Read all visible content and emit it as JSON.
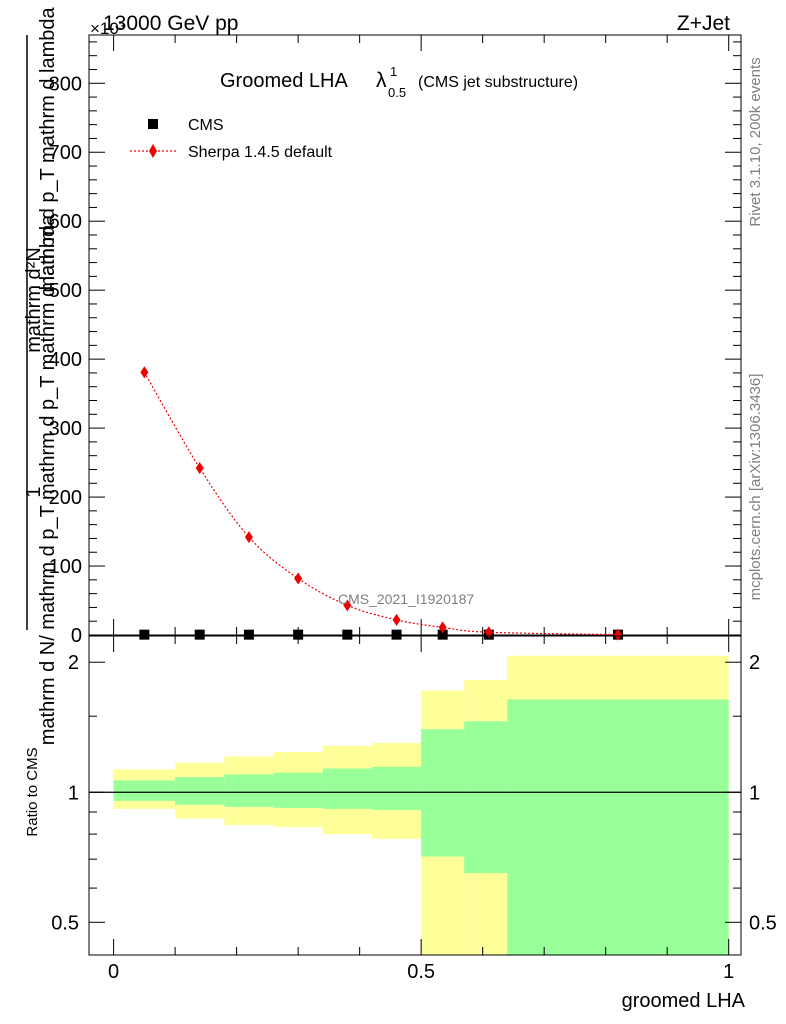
{
  "header": {
    "energy_label": "13000 GeV pp",
    "process_label": "Z+Jet",
    "exponent_label": "×10³"
  },
  "side_text": {
    "rivet": "Rivet 3.1.10,  200k events",
    "mcplots": "mcplots.cern.ch [arXiv:1306.3436]"
  },
  "chart_data": [
    {
      "type": "line",
      "title": "Groomed LHA",
      "title_symbol": "λ",
      "title_superscript": "1",
      "title_subscript": "0.5",
      "title_note": "(CMS jet substructure)",
      "ylabel_parts": [
        "1",
        "mathrm d N / mathrm d p_T mathrm d lambda",
        "mathrm d N",
        "mathrm d p_T mathrm d lambda"
      ],
      "ylabel_numerator": "1",
      "ylabel_denominator": "mathrm d N/ mathrm d p_T mathrm d p_T mathrm d lambda",
      "ylabel_right_top": "mathrm d²N",
      "ylabel_right_bottom": "mathrm d p_T mathrm d lambda",
      "xlim": [
        -0.04,
        1.02
      ],
      "ylim": [
        0,
        870
      ],
      "y_scale_note": "×10^3",
      "yticks": [
        0,
        100,
        200,
        300,
        400,
        500,
        600,
        700,
        800
      ],
      "watermark": "CMS_2021_I1920187",
      "legend_position": "top-left",
      "series": [
        {
          "name": "CMS",
          "color": "#000000",
          "marker": "square",
          "x": [
            0.05,
            0.14,
            0.22,
            0.3,
            0.38,
            0.46,
            0.535,
            0.61,
            0.82
          ],
          "y": [
            0.5,
            0.5,
            0.5,
            0.5,
            0.5,
            0.5,
            0.5,
            0.5,
            0.5
          ]
        },
        {
          "name": "Sherpa 1.4.5 default",
          "color": "#ee0000",
          "marker": "diamond",
          "x": [
            0.05,
            0.14,
            0.22,
            0.3,
            0.38,
            0.46,
            0.535,
            0.61,
            0.82
          ],
          "y": [
            381,
            242,
            142,
            82,
            43,
            22,
            11,
            4,
            0.5
          ]
        }
      ]
    },
    {
      "type": "area",
      "ylabel": "Ratio to CMS",
      "xlabel": "groomed LHA",
      "xlim": [
        -0.04,
        1.02
      ],
      "ylim": [
        0.42,
        2.3
      ],
      "y_scale": "log",
      "yticks": [
        0.5,
        1,
        2
      ],
      "ytick_labels": [
        "0.5",
        "1",
        "2"
      ],
      "xticks": [
        0,
        0.5,
        1
      ],
      "xtick_labels": [
        "0",
        "0.5",
        "1"
      ],
      "reference_line": 1,
      "bands": [
        {
          "name": "outer",
          "color": "#ffff99",
          "bins": [
            {
              "x0": 0.0,
              "x1": 0.1,
              "lo": 0.915,
              "hi": 1.13
            },
            {
              "x0": 0.1,
              "x1": 0.18,
              "lo": 0.87,
              "hi": 1.17
            },
            {
              "x0": 0.18,
              "x1": 0.26,
              "lo": 0.84,
              "hi": 1.21
            },
            {
              "x0": 0.26,
              "x1": 0.34,
              "lo": 0.83,
              "hi": 1.24
            },
            {
              "x0": 0.34,
              "x1": 0.42,
              "lo": 0.8,
              "hi": 1.28
            },
            {
              "x0": 0.42,
              "x1": 0.5,
              "lo": 0.78,
              "hi": 1.3
            },
            {
              "x0": 0.5,
              "x1": 0.57,
              "lo": 0.41,
              "hi": 1.72
            },
            {
              "x0": 0.57,
              "x1": 0.64,
              "lo": 0.41,
              "hi": 1.82
            },
            {
              "x0": 0.64,
              "x1": 1.0,
              "lo": 0.41,
              "hi": 2.07
            }
          ]
        },
        {
          "name": "inner",
          "color": "#99ff99",
          "bins": [
            {
              "x0": 0.0,
              "x1": 0.1,
              "lo": 0.955,
              "hi": 1.065
            },
            {
              "x0": 0.1,
              "x1": 0.18,
              "lo": 0.935,
              "hi": 1.085
            },
            {
              "x0": 0.18,
              "x1": 0.26,
              "lo": 0.925,
              "hi": 1.1
            },
            {
              "x0": 0.26,
              "x1": 0.34,
              "lo": 0.92,
              "hi": 1.11
            },
            {
              "x0": 0.34,
              "x1": 0.42,
              "lo": 0.915,
              "hi": 1.135
            },
            {
              "x0": 0.42,
              "x1": 0.5,
              "lo": 0.91,
              "hi": 1.145
            },
            {
              "x0": 0.5,
              "x1": 0.57,
              "lo": 0.71,
              "hi": 1.4
            },
            {
              "x0": 0.57,
              "x1": 0.64,
              "lo": 0.65,
              "hi": 1.46
            },
            {
              "x0": 0.64,
              "x1": 1.0,
              "lo": 0.41,
              "hi": 1.64
            }
          ]
        }
      ]
    }
  ]
}
